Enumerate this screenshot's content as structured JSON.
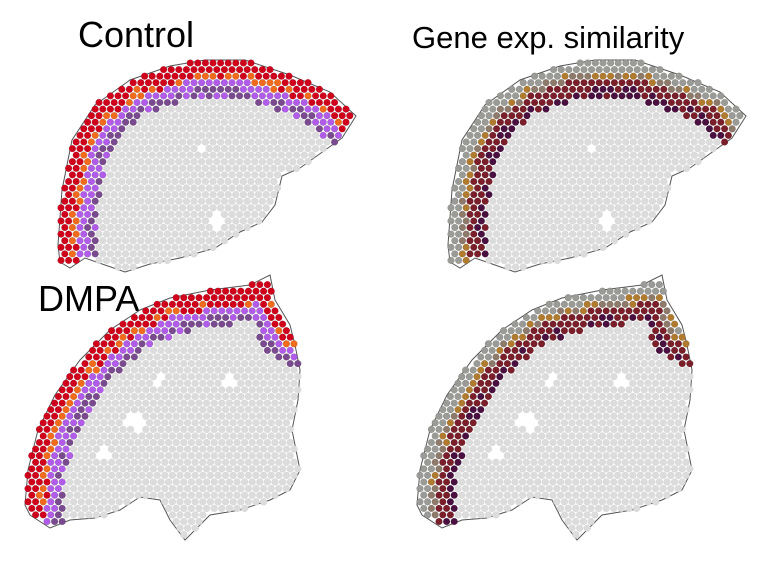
{
  "labels": {
    "control": "Control",
    "gene_exp": "Gene exp. similarity",
    "dmpa": "DMPA"
  },
  "palettes": {
    "cluster": [
      "#d0021b",
      "#f26b1d",
      "#b15ce8",
      "#7a4a8f"
    ],
    "similarity": [
      "#9a9a96",
      "#b07a2f",
      "#7a1f2a",
      "#4a1040",
      "#8e7a6a"
    ],
    "background_spot": "#dcdcdc",
    "outline": "#555555"
  },
  "panels": [
    {
      "id": "control-clusters",
      "condition": "Control",
      "coloring": "cluster"
    },
    {
      "id": "control-similarity",
      "condition": "Control",
      "coloring": "similarity"
    },
    {
      "id": "dmpa-clusters",
      "condition": "DMPA",
      "coloring": "cluster"
    },
    {
      "id": "dmpa-similarity",
      "condition": "DMPA",
      "coloring": "similarity"
    }
  ]
}
